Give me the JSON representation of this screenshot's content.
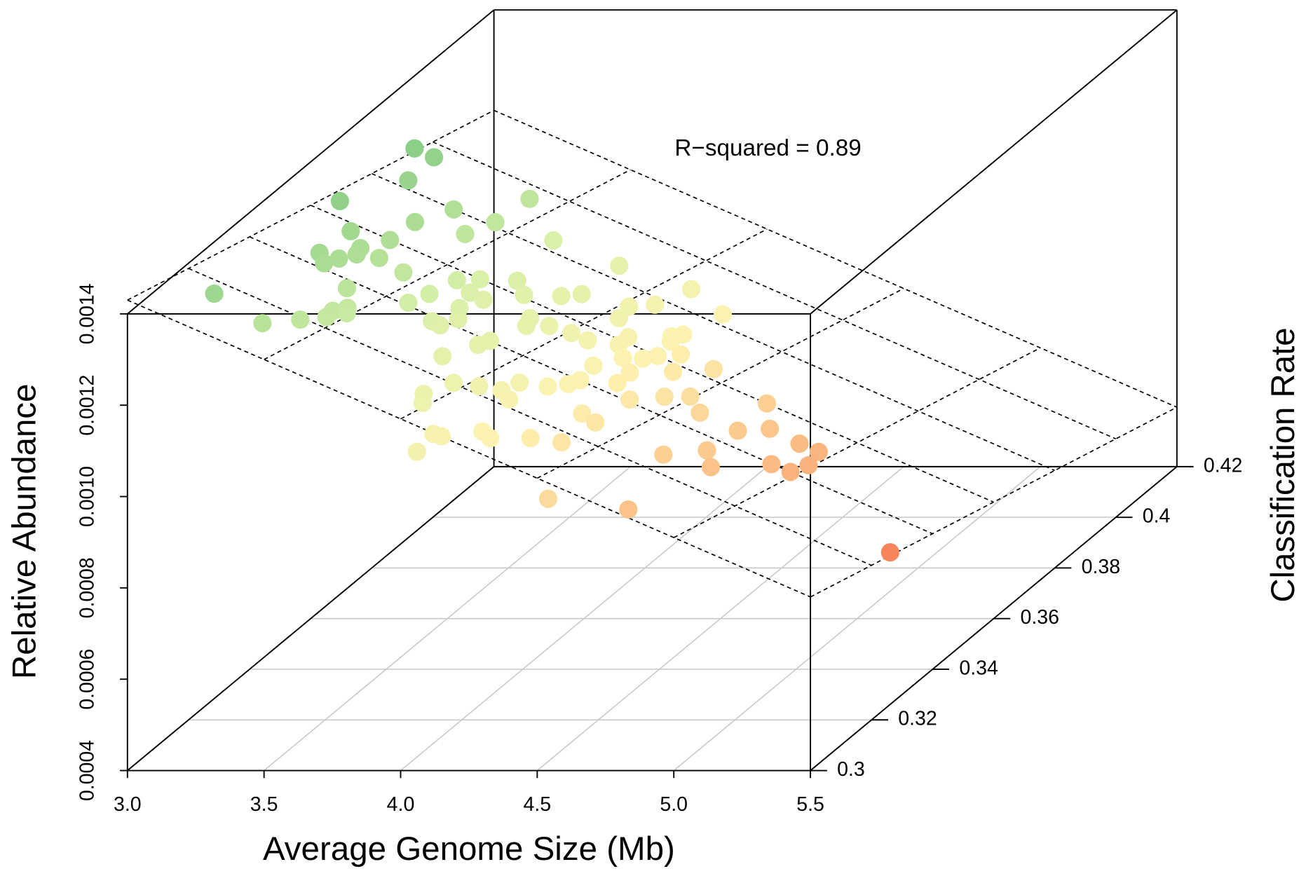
{
  "chart_data": {
    "type": "scatter3d",
    "annotation": "R−squared = 0.89",
    "x_label": "Average Genome Size (Mb)",
    "y_label": "Classification Rate",
    "z_label": "Relative Abundance",
    "xlim": [
      3.0,
      5.5
    ],
    "ylim": [
      0.3,
      0.42
    ],
    "zlim": [
      0.0004,
      0.0014
    ],
    "xticks": [
      {
        "value": 3.0,
        "label": "3.0"
      },
      3.5,
      {
        "value": 4.0,
        "label": "4.0"
      },
      4.5,
      {
        "value": 5.0,
        "label": "5.0"
      },
      5.5
    ],
    "yticks": [
      0.3,
      0.32,
      0.34,
      0.36,
      0.38,
      0.4,
      0.42
    ],
    "zticks": [
      0.0004,
      0.0006,
      0.0008,
      {
        "value": 0.001,
        "label": "0.0010"
      },
      0.0012,
      0.0014
    ],
    "grid": true,
    "colormap": [
      "#8ccf87",
      "#d9f0a8",
      "#fdf3b0",
      "#fbbd84",
      "#f7845a"
    ],
    "fit_plane": {
      "intercept": 0.002835,
      "x_coef": -0.00026,
      "y_coef": -0.002083
    },
    "x": [
      3.0,
      3.06,
      3.1,
      3.04,
      3.3,
      3.41,
      3.27,
      3.43,
      3.18,
      3.42,
      3.29,
      3.2,
      3.26,
      3.25,
      3.26,
      3.28,
      3.34,
      3.44,
      3.62,
      3.58,
      3.39,
      3.15,
      3.58,
      3.57,
      3.65,
      3.71,
      3.45,
      3.47,
      3.46,
      3.49,
      3.42,
      3.36,
      3.69,
      3.69,
      3.72,
      3.73,
      3.62,
      3.85,
      3.7,
      3.77,
      3.85,
      3.88,
      3.88,
      3.87,
      3.89,
      3.94,
      3.87,
      3.84,
      4.01,
      4.07,
      4.18,
      4.02,
      4.05,
      4.07,
      4.08,
      4.24,
      4.15,
      4.14,
      4.22,
      4.24,
      4.24,
      4.21,
      4.25,
      4.27,
      4.31,
      4.36,
      4.43,
      4.28,
      4.29,
      4.2,
      4.21,
      4.17,
      4.1,
      4.09,
      4.14,
      4.03,
      3.97,
      3.95,
      3.98,
      4.34,
      4.4,
      4.38,
      4.44,
      4.49,
      4.57,
      4.67,
      4.72,
      4.77,
      4.89,
      4.96,
      4.73,
      4.8,
      4.91,
      4.98,
      4.99,
      4.66,
      4.41,
      4.33,
      4.21,
      4.25,
      4.12,
      4.15,
      4.06,
      4.54,
      4.8,
      5.49
    ],
    "y": [
      0.394,
      0.395,
      0.383,
      0.366,
      0.38,
      0.395,
      0.37,
      0.382,
      0.357,
      0.373,
      0.36,
      0.345,
      0.346,
      0.342,
      0.353,
      0.35,
      0.352,
      0.351,
      0.36,
      0.356,
      0.337,
      0.315,
      0.347,
      0.341,
      0.354,
      0.353,
      0.327,
      0.33,
      0.324,
      0.328,
      0.319,
      0.312,
      0.347,
      0.338,
      0.338,
      0.343,
      0.384,
      0.385,
      0.365,
      0.361,
      0.366,
      0.37,
      0.34,
      0.337,
      0.351,
      0.354,
      0.354,
      0.328,
      0.355,
      0.355,
      0.347,
      0.373,
      0.367,
      0.377,
      0.388,
      0.384,
      0.358,
      0.362,
      0.369,
      0.371,
      0.367,
      0.354,
      0.357,
      0.36,
      0.364,
      0.357,
      0.364,
      0.35,
      0.345,
      0.337,
      0.34,
      0.333,
      0.33,
      0.325,
      0.323,
      0.323,
      0.32,
      0.312,
      0.309,
      0.329,
      0.328,
      0.341,
      0.347,
      0.351,
      0.347,
      0.36,
      0.346,
      0.352,
      0.351,
      0.351,
      0.335,
      0.33,
      0.34,
      0.34,
      0.345,
      0.327,
      0.316,
      0.313,
      0.308,
      0.307,
      0.3,
      0.3,
      0.3,
      0.3,
      0.303,
      0.327
    ],
    "z": [
      0.001241,
      0.001216,
      0.001232,
      0.001281,
      0.001185,
      0.001125,
      0.001213,
      0.001146,
      0.001265,
      0.00117,
      0.001229,
      0.001284,
      0.001266,
      0.001278,
      0.00125,
      0.001253,
      0.001234,
      0.001208,
      0.001143,
      0.001163,
      0.001251,
      0.001361,
      0.001183,
      0.001197,
      0.001147,
      0.001137,
      0.001257,
      0.001247,
      0.00126,
      0.001246,
      0.001282,
      0.001313,
      0.001152,
      0.001173,
      0.001164,
      0.00115,
      0.001095,
      0.001034,
      0.001112,
      0.001103,
      0.001073,
      0.001055,
      0.001119,
      0.001127,
      0.001091,
      0.001074,
      0.001091,
      0.001152,
      0.001053,
      0.001037,
      0.001026,
      0.001011,
      0.001019,
      0.000993,
      0.000966,
      0.000933,
      0.001011,
      0.001005,
      0.000968,
      0.000961,
      0.000968,
      0.001004,
      0.000986,
      0.000975,
      0.000956,
      0.000957,
      0.000924,
      0.000994,
      0.000999,
      0.001041,
      0.001033,
      0.001058,
      0.001083,
      0.001094,
      0.001085,
      0.001114,
      0.001138,
      0.001158,
      0.001155,
      0.001021,
      0.001007,
      0.000985,
      0.000958,
      0.000936,
      0.000923,
      0.000871,
      0.000889,
      0.00086,
      0.000833,
      0.000815,
      0.000907,
      0.000898,
      0.000849,
      0.000832,
      0.000819,
      0.000942,
      0.00103,
      0.001056,
      0.001098,
      0.001089,
      0.001137,
      0.001132,
      0.001098,
      0.000995,
      0.000955,
      0.000728
    ]
  }
}
